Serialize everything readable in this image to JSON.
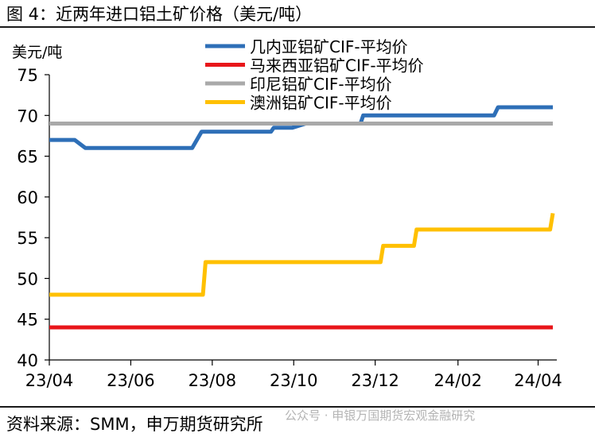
{
  "figure_title": "图 4：近两年进口铝土矿价格（美元/吨）",
  "source_note": "资料来源：SMM，申万期货研究所",
  "watermark": "公众号 · 申银万国期货宏观金融研究",
  "chart_data": {
    "type": "line",
    "ylabel": "美元/吨",
    "ylim": [
      40,
      75
    ],
    "yticks": [
      40,
      45,
      50,
      55,
      60,
      65,
      70,
      75
    ],
    "xlim": [
      "2023-04-01",
      "2024-04-15"
    ],
    "xticks": [
      {
        "date": "2023-04-01",
        "label": "23/04"
      },
      {
        "date": "2023-06-01",
        "label": "23/06"
      },
      {
        "date": "2023-08-01",
        "label": "23/08"
      },
      {
        "date": "2023-10-01",
        "label": "23/10"
      },
      {
        "date": "2023-12-01",
        "label": "23/12"
      },
      {
        "date": "2024-02-01",
        "label": "24/02"
      },
      {
        "date": "2024-04-01",
        "label": "24/04"
      }
    ],
    "legend_position": "top",
    "grid": false,
    "series": [
      {
        "name": "几内亚铝矿CIF-平均价",
        "color": "#2e6fb7",
        "points": [
          [
            "2023-04-01",
            67
          ],
          [
            "2023-04-20",
            67
          ],
          [
            "2023-04-28",
            66
          ],
          [
            "2023-07-17",
            66
          ],
          [
            "2023-07-24",
            68
          ],
          [
            "2023-09-14",
            68
          ],
          [
            "2023-09-16",
            68.5
          ],
          [
            "2023-09-30",
            68.5
          ],
          [
            "2023-10-10",
            69
          ],
          [
            "2023-11-20",
            69
          ],
          [
            "2023-11-22",
            70
          ],
          [
            "2024-02-28",
            70
          ],
          [
            "2024-03-02",
            71
          ],
          [
            "2024-04-12",
            71
          ]
        ]
      },
      {
        "name": "马来西亚铝矿CIF-平均价",
        "color": "#e8161a",
        "points": [
          [
            "2023-04-01",
            44
          ],
          [
            "2024-04-12",
            44
          ]
        ]
      },
      {
        "name": "印尼铝矿CIF-平均价",
        "color": "#a9a9a9",
        "points": [
          [
            "2023-04-01",
            69
          ],
          [
            "2024-04-12",
            69
          ]
        ]
      },
      {
        "name": "澳洲铝矿CIF-平均价",
        "color": "#ffc000",
        "points": [
          [
            "2023-04-01",
            48
          ],
          [
            "2023-07-25",
            48
          ],
          [
            "2023-07-27",
            52
          ],
          [
            "2023-12-05",
            52
          ],
          [
            "2023-12-07",
            54
          ],
          [
            "2023-12-30",
            54
          ],
          [
            "2024-01-01",
            56
          ],
          [
            "2024-04-10",
            56
          ],
          [
            "2024-04-12",
            58
          ]
        ]
      }
    ]
  }
}
